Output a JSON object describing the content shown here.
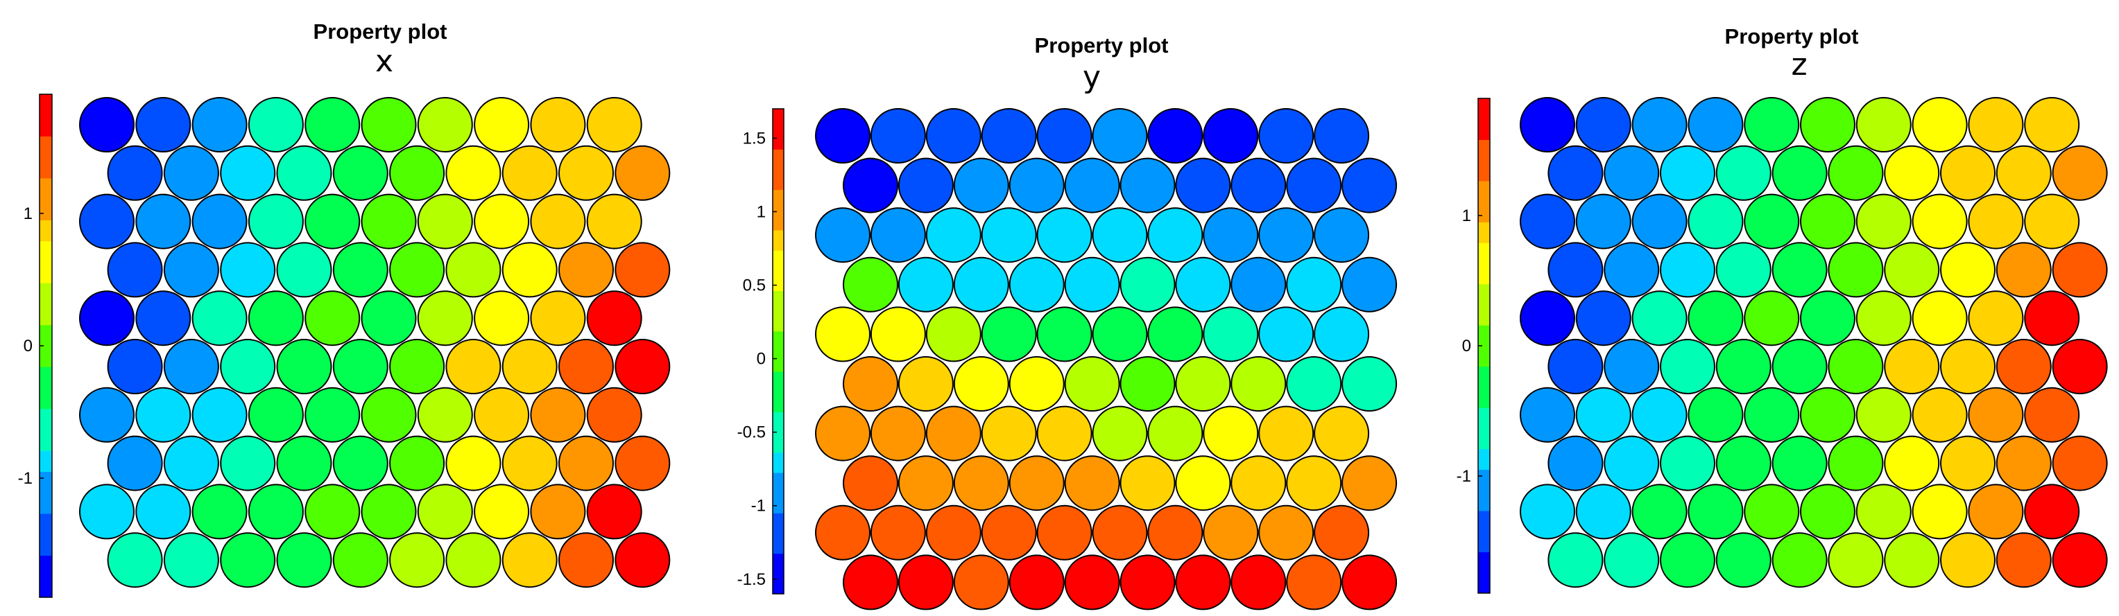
{
  "figure": {
    "colormap": [
      "#0000ff",
      "#0050ff",
      "#0096ff",
      "#00dcff",
      "#00ffb4",
      "#00ff50",
      "#50ff00",
      "#b4ff00",
      "#ffff00",
      "#ffd200",
      "#ff9600",
      "#ff5a00",
      "#ff0000"
    ]
  },
  "chart_data": [
    {
      "type": "heatmap",
      "title": "Property plot",
      "subtitle": "x",
      "layout": "hexagonal",
      "rows": 10,
      "cols": 10,
      "colorbar": {
        "range": [
          -1.9,
          1.9
        ],
        "ticks": [
          -1,
          0,
          1
        ],
        "tick_labels": [
          "-1",
          "0",
          "1"
        ]
      },
      "values": [
        [
          -1.9,
          -1.5,
          -1.1,
          -0.7,
          -0.3,
          0.0,
          0.3,
          0.6,
          0.9,
          1.0
        ],
        [
          -1.6,
          -1.2,
          -0.9,
          -0.6,
          -0.3,
          0.0,
          0.5,
          0.8,
          1.0,
          1.2
        ],
        [
          -1.4,
          -1.2,
          -1.1,
          -0.7,
          -0.3,
          -0.1,
          0.3,
          0.5,
          0.9,
          1.0
        ],
        [
          -1.5,
          -1.1,
          -0.8,
          -0.6,
          -0.2,
          -0.1,
          0.3,
          0.7,
          1.1,
          1.4
        ],
        [
          -1.9,
          -1.5,
          -0.5,
          -0.3,
          -0.1,
          -0.2,
          0.3,
          0.5,
          1.0,
          1.7
        ],
        [
          -1.6,
          -1.2,
          -0.6,
          -0.4,
          -0.4,
          0.1,
          0.8,
          1.0,
          1.5,
          1.9
        ],
        [
          -1.3,
          -1.0,
          -0.9,
          -0.4,
          -0.2,
          -0.1,
          0.3,
          1.0,
          1.1,
          1.4
        ],
        [
          -1.1,
          -0.8,
          -0.6,
          -0.3,
          -0.2,
          -0.1,
          0.5,
          0.8,
          1.1,
          1.4
        ],
        [
          -0.9,
          -0.8,
          -0.4,
          -0.2,
          -0.1,
          0.1,
          0.4,
          0.6,
          1.1,
          1.7
        ],
        [
          -0.6,
          -0.5,
          -0.4,
          -0.2,
          0.0,
          0.2,
          0.3,
          0.9,
          1.6,
          1.9
        ]
      ]
    },
    {
      "type": "heatmap",
      "title": "Property plot",
      "subtitle": "y",
      "layout": "hexagonal",
      "rows": 10,
      "cols": 10,
      "colorbar": {
        "range": [
          -1.6,
          1.7
        ],
        "ticks": [
          -1.5,
          -1,
          -0.5,
          0,
          0.5,
          1,
          1.5
        ],
        "tick_labels": [
          "-1.5",
          "-1",
          "-0.5",
          "0",
          "0.5",
          "1",
          "1.5"
        ]
      },
      "values": [
        [
          -1.6,
          -1.3,
          -1.2,
          -1.2,
          -1.1,
          -1.0,
          -1.6,
          -1.6,
          -1.2,
          -1.3
        ],
        [
          -1.4,
          -1.2,
          -1.0,
          -0.9,
          -0.9,
          -0.9,
          -1.3,
          -1.2,
          -1.1,
          -1.2
        ],
        [
          -1.0,
          -0.9,
          -0.8,
          -0.8,
          -0.7,
          -0.8,
          -0.8,
          -1.0,
          -1.0,
          -0.9
        ],
        [
          0.0,
          -0.7,
          -0.6,
          -0.6,
          -0.6,
          -0.5,
          -0.7,
          -0.9,
          -0.8,
          -1.0
        ],
        [
          0.6,
          0.6,
          0.4,
          -0.3,
          -0.3,
          -0.3,
          -0.1,
          -0.4,
          -0.8,
          -0.7
        ],
        [
          1.0,
          0.8,
          0.6,
          0.6,
          0.3,
          0.1,
          0.3,
          0.3,
          -0.4,
          -0.5
        ],
        [
          1.0,
          1.0,
          1.0,
          0.9,
          0.8,
          0.2,
          0.4,
          0.6,
          0.7,
          0.7
        ],
        [
          1.2,
          1.1,
          1.0,
          1.1,
          1.1,
          0.9,
          0.6,
          0.7,
          0.9,
          1.0
        ],
        [
          1.4,
          1.3,
          1.3,
          1.2,
          1.3,
          1.3,
          1.4,
          1.1,
          1.0,
          1.4
        ],
        [
          1.5,
          1.5,
          1.4,
          1.7,
          1.5,
          1.5,
          1.5,
          1.7,
          1.3,
          1.5
        ]
      ]
    },
    {
      "type": "heatmap",
      "title": "Property plot",
      "subtitle": "z",
      "layout": "hexagonal",
      "rows": 10,
      "cols": 10,
      "colorbar": {
        "range": [
          -1.9,
          1.9
        ],
        "ticks": [
          -1,
          0,
          1
        ],
        "tick_labels": [
          "-1",
          "0",
          "1"
        ]
      },
      "values": [
        [
          -1.9,
          -1.4,
          -1.2,
          -1.1,
          -0.4,
          -0.1,
          0.3,
          0.5,
          0.9,
          1.0
        ],
        [
          -1.6,
          -1.2,
          -0.9,
          -0.6,
          -0.3,
          -0.1,
          0.5,
          0.8,
          1.0,
          1.2
        ],
        [
          -1.4,
          -1.2,
          -1.1,
          -0.7,
          -0.3,
          -0.1,
          0.3,
          0.5,
          0.9,
          1.0
        ],
        [
          -1.5,
          -1.1,
          -0.8,
          -0.6,
          -0.2,
          -0.1,
          0.3,
          0.7,
          1.1,
          1.4
        ],
        [
          -1.9,
          -1.5,
          -0.5,
          -0.3,
          -0.1,
          -0.2,
          0.3,
          0.5,
          1.0,
          1.7
        ],
        [
          -1.6,
          -1.2,
          -0.6,
          -0.4,
          -0.4,
          0.1,
          0.8,
          1.0,
          1.5,
          1.9
        ],
        [
          -1.3,
          -1.0,
          -0.9,
          -0.4,
          -0.2,
          -0.1,
          0.3,
          1.0,
          1.1,
          1.4
        ],
        [
          -1.1,
          -0.8,
          -0.6,
          -0.3,
          -0.2,
          -0.1,
          0.5,
          0.8,
          1.1,
          1.4
        ],
        [
          -0.9,
          -0.8,
          -0.4,
          -0.2,
          -0.1,
          0.1,
          0.4,
          0.6,
          1.1,
          1.7
        ],
        [
          -0.6,
          -0.5,
          -0.4,
          -0.2,
          0.0,
          0.2,
          0.3,
          0.9,
          1.6,
          1.9
        ]
      ]
    }
  ]
}
